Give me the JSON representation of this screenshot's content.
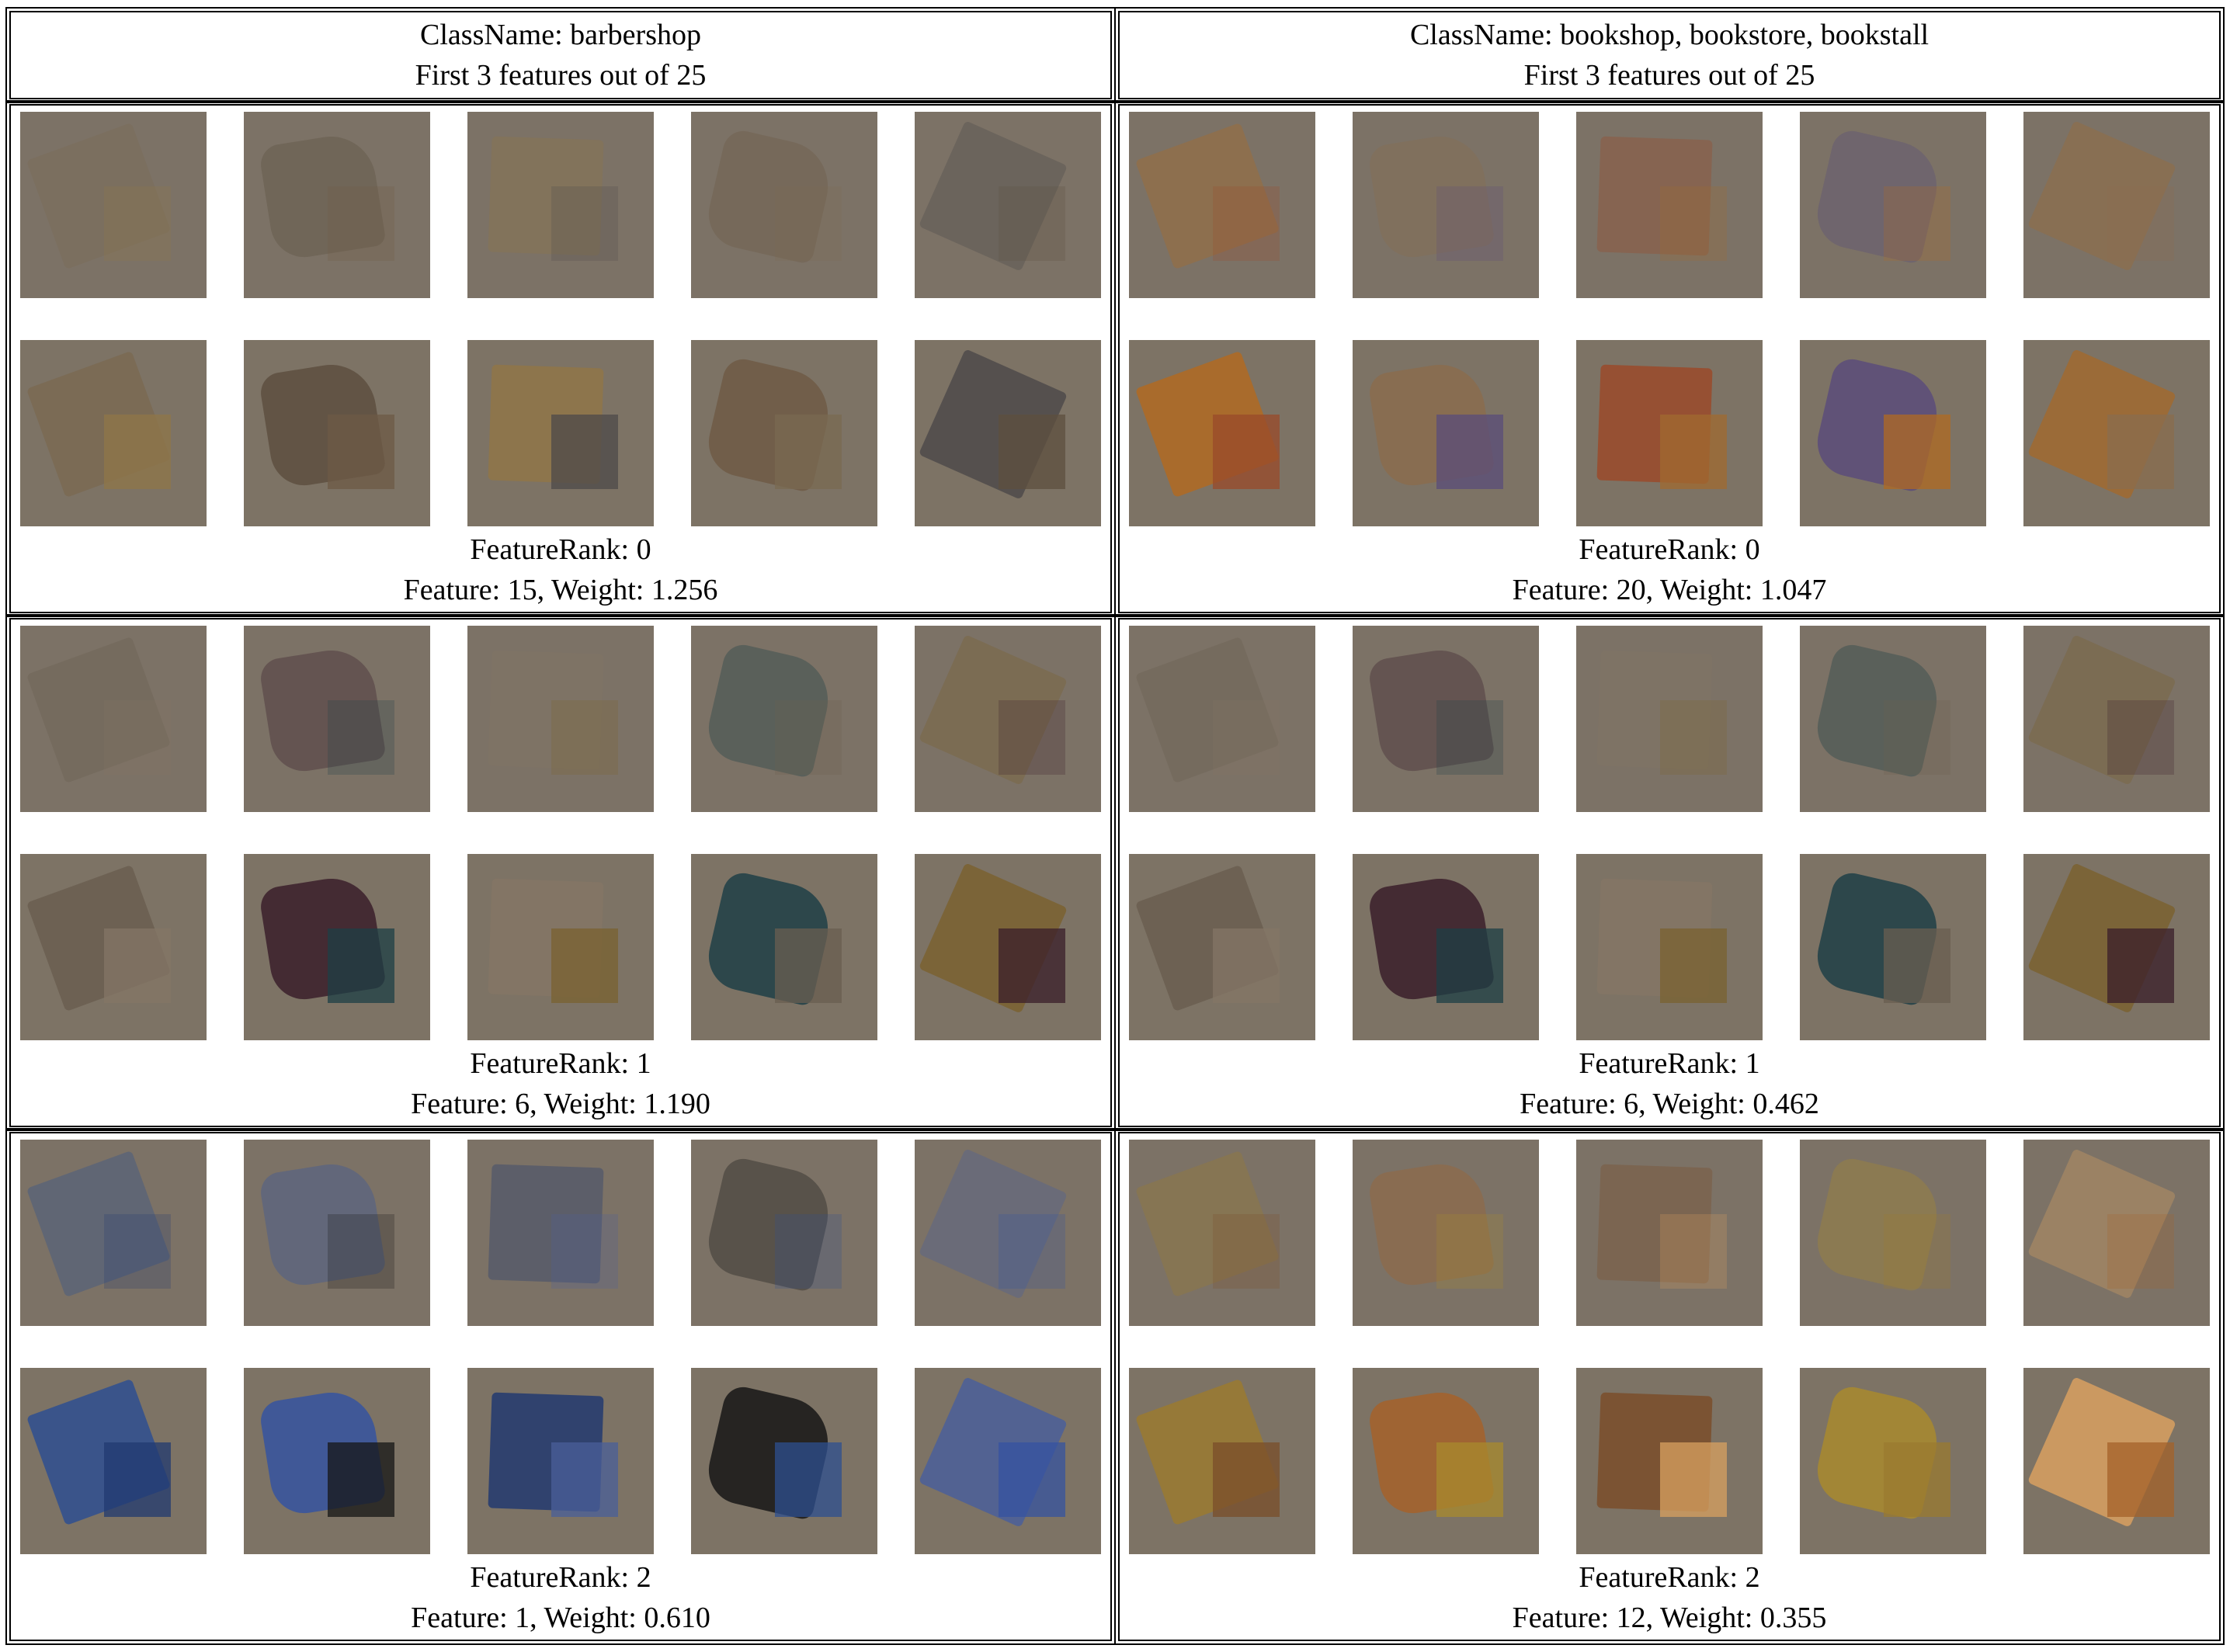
{
  "classes": [
    {
      "header_line1": "ClassName: barbershop",
      "header_line2": "First 3 features out of 25",
      "features": [
        {
          "rank_label": "FeatureRank: 0",
          "feature_label": "Feature: 15, Weight: 1.256"
        },
        {
          "rank_label": "FeatureRank: 1",
          "feature_label": "Feature: 6, Weight: 1.190"
        },
        {
          "rank_label": "FeatureRank: 2",
          "feature_label": "Feature: 1, Weight: 0.610"
        }
      ]
    },
    {
      "header_line1": "ClassName: bookshop, bookstore, bookstall",
      "header_line2": "First 3 features out of 25",
      "features": [
        {
          "rank_label": "FeatureRank: 0",
          "feature_label": "Feature: 20, Weight: 1.047"
        },
        {
          "rank_label": "FeatureRank: 1",
          "feature_label": "Feature: 6, Weight: 0.462"
        },
        {
          "rank_label": "FeatureRank: 2",
          "feature_label": "Feature: 12, Weight: 0.355"
        }
      ]
    }
  ],
  "palette": {
    "barbershop_f0": [
      "#7a6a52",
      "#5d4f3f",
      "#8f7648",
      "#6e5a45",
      "#4e4a4a"
    ],
    "barbershop_f1": [
      "#6a5e50",
      "#3a1e2a",
      "#847565",
      "#1e3f46",
      "#7a6230"
    ],
    "barbershop_f2": [
      "#2e4f90",
      "#3553a0",
      "#223a70",
      "#161616",
      "#4a5f9a"
    ],
    "bookshop_f0": [
      "#b06a22",
      "#8a6c4e",
      "#9a4a2a",
      "#5a4c7a",
      "#a06a30"
    ],
    "bookshop_f1": [
      "#6a5e50",
      "#3a1e2a",
      "#847565",
      "#1e3f46",
      "#7a6230"
    ],
    "bookshop_f2": [
      "#9a7a30",
      "#a4622a",
      "#7a4e2a",
      "#a88a2e",
      "#d8a060"
    ]
  }
}
